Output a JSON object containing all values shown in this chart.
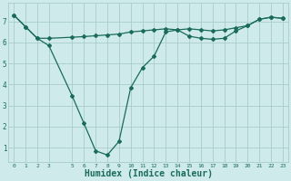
{
  "line1_x": [
    0,
    1,
    2,
    3,
    5,
    6,
    7,
    8,
    9,
    10,
    11,
    12,
    13,
    14,
    15,
    16,
    17,
    18,
    19,
    20,
    21,
    22,
    23
  ],
  "line1_y": [
    7.3,
    6.75,
    6.2,
    6.2,
    6.25,
    6.28,
    6.32,
    6.36,
    6.4,
    6.5,
    6.55,
    6.6,
    6.65,
    6.6,
    6.65,
    6.6,
    6.55,
    6.6,
    6.7,
    6.8,
    7.1,
    7.2,
    7.15
  ],
  "line2_x": [
    0,
    1,
    2,
    3,
    5,
    6,
    7,
    8,
    9,
    10,
    11,
    12,
    13,
    14,
    15,
    16,
    17,
    18,
    19,
    20,
    21,
    22,
    23
  ],
  "line2_y": [
    7.3,
    6.75,
    6.2,
    5.85,
    3.45,
    2.15,
    0.85,
    0.65,
    1.3,
    3.85,
    4.8,
    5.35,
    6.5,
    6.6,
    6.3,
    6.2,
    6.15,
    6.2,
    6.55,
    6.8,
    7.1,
    7.2,
    7.15
  ],
  "line_color": "#1a6b5a",
  "bg_color": "#ceeaea",
  "grid_color": "#a8cccc",
  "xlabel": "Humidex (Indice chaleur)",
  "xlabel_fontsize": 7,
  "xtick_positions": [
    0,
    1,
    2,
    3,
    5,
    6,
    7,
    8,
    9,
    10,
    11,
    12,
    13,
    14,
    15,
    16,
    17,
    18,
    19,
    20,
    21,
    22,
    23
  ],
  "xtick_labels": [
    "0",
    "1",
    "2",
    "3",
    "5",
    "6",
    "7",
    "8",
    "9",
    "10",
    "11",
    "12",
    "13",
    "14",
    "15",
    "16",
    "17",
    "18",
    "19",
    "20",
    "21",
    "22",
    "23"
  ],
  "yticks": [
    1,
    2,
    3,
    4,
    5,
    6,
    7
  ],
  "ylim": [
    0.3,
    7.9
  ],
  "xlim": [
    -0.5,
    23.5
  ],
  "marker": "D",
  "marker_size": 2.0,
  "linewidth": 0.9
}
